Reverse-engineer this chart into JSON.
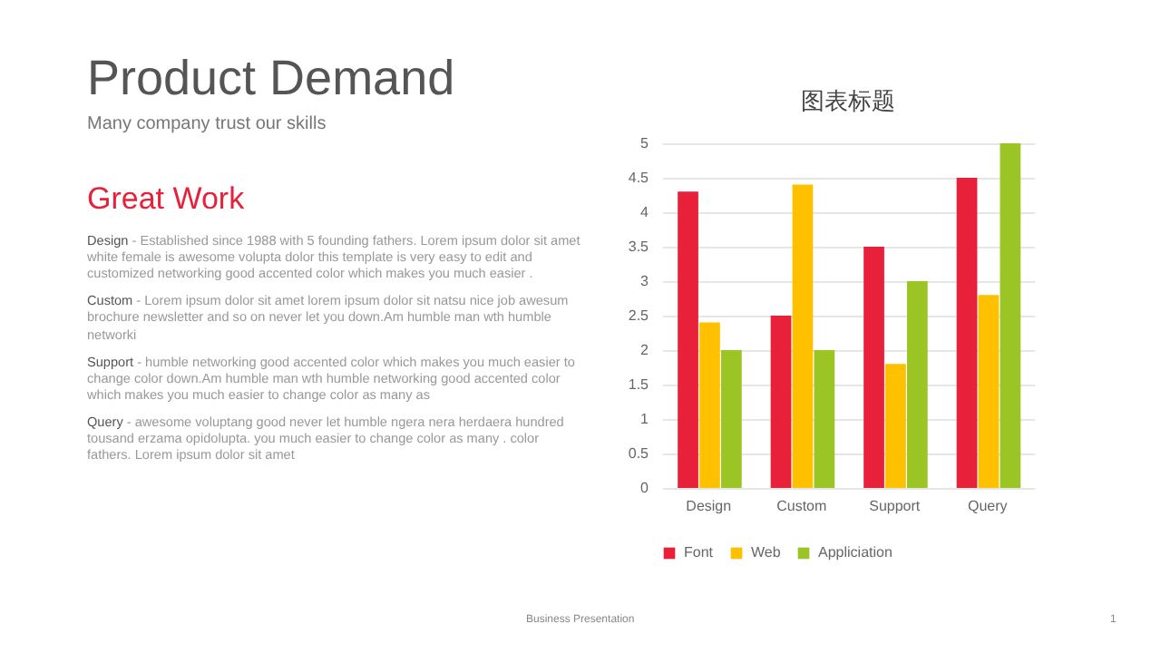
{
  "chart_data": {
    "type": "bar",
    "title": "图表标题",
    "categories": [
      "Design",
      "Custom",
      "Support",
      "Query"
    ],
    "series": [
      {
        "name": "Font",
        "color": "#e8203a",
        "values": [
          4.3,
          2.5,
          3.5,
          4.5
        ]
      },
      {
        "name": "Web",
        "color": "#ffc000",
        "values": [
          2.4,
          4.4,
          1.8,
          2.8
        ]
      },
      {
        "name": "Appliciation",
        "color": "#9bc524",
        "values": [
          2.0,
          2.0,
          3.0,
          5.0
        ]
      }
    ],
    "ylim": [
      0,
      5
    ],
    "yticks": [
      0,
      0.5,
      1,
      1.5,
      2,
      2.5,
      3,
      3.5,
      4,
      4.5,
      5
    ],
    "grid": "y",
    "legend": "bottom",
    "annotations": [
      "Product Demand",
      "Many company trust our skills",
      "Great Work",
      "Design - Established since 1988 with 5 founding fathers. Lorem ipsum dolor sit amet white female is awesome volupta dolor this template is very easy to edit and customized networking good accented color which makes you much easier .",
      "Custom - Lorem ipsum dolor sit amet lorem ipsum dolor sit natsu nice job awesum brochure newsletter and so on never let you down.Am humble man wth humble networki",
      "Support - humble networking good accented color which makes you much easier to change color down.Am humble man wth humble networking good accented color which makes you much easier to change color as many as",
      "Query - awesome voluptang good never let humble ngera nera herdaera hundred tousand erzama opidolupta. you much easier to change color as many . color fathers. Lorem ipsum dolor sit amet",
      "Business Presentation",
      "1"
    ]
  }
}
